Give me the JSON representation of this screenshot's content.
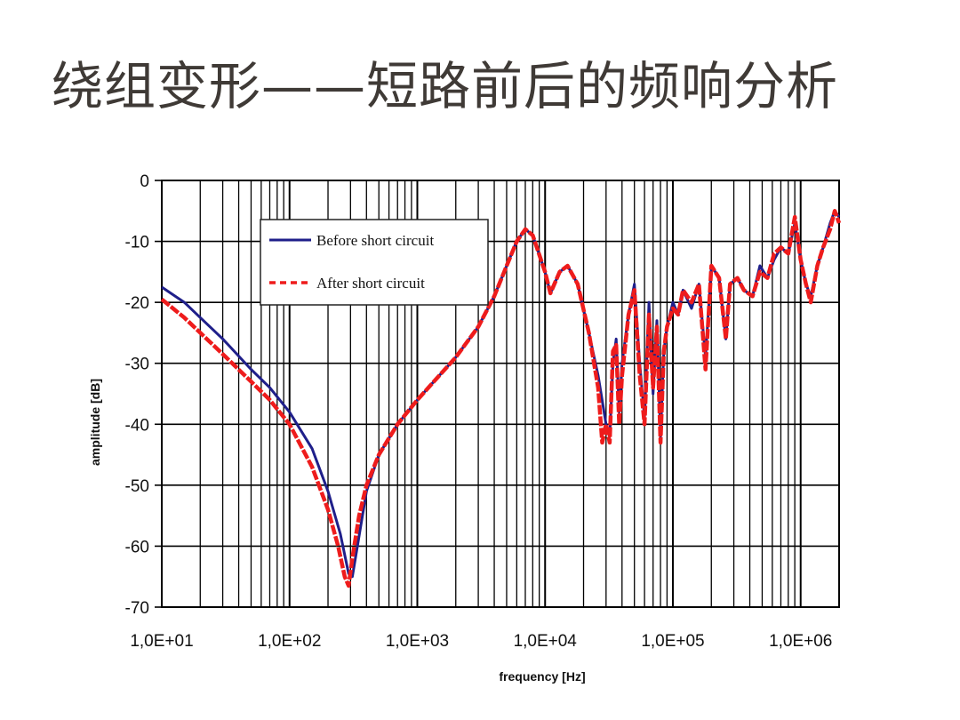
{
  "slide": {
    "title": "绕组变形——短路前后的频响分析"
  },
  "chart_data": {
    "type": "line",
    "title": "",
    "xlabel": "frequency [Hz]",
    "ylabel": "amplitude [dB]",
    "xscale": "log",
    "xlim": [
      10,
      2000000
    ],
    "ylim": [
      -70,
      0
    ],
    "grid": true,
    "legend_position": "top-left",
    "x_tick_labels": [
      "1,0E+01",
      "1,0E+02",
      "1,0E+03",
      "1,0E+04",
      "1,0E+05",
      "1,0E+06"
    ],
    "x_tick_values": [
      10,
      100,
      1000,
      10000,
      100000,
      1000000
    ],
    "y_ticks": [
      0,
      -10,
      -20,
      -30,
      -40,
      -50,
      -60,
      -70
    ],
    "series": [
      {
        "name": "Before short circuit",
        "color": "#1f1f8a",
        "style": "solid",
        "points": [
          [
            10,
            -17.5
          ],
          [
            15,
            -20
          ],
          [
            20,
            -22.5
          ],
          [
            30,
            -26
          ],
          [
            50,
            -31
          ],
          [
            70,
            -34
          ],
          [
            100,
            -38
          ],
          [
            150,
            -44
          ],
          [
            200,
            -51
          ],
          [
            250,
            -58
          ],
          [
            290,
            -64.5
          ],
          [
            310,
            -65
          ],
          [
            340,
            -60
          ],
          [
            400,
            -51
          ],
          [
            500,
            -45
          ],
          [
            700,
            -40
          ],
          [
            1000,
            -36
          ],
          [
            2000,
            -29
          ],
          [
            3000,
            -24
          ],
          [
            4000,
            -19
          ],
          [
            5000,
            -14
          ],
          [
            6000,
            -10
          ],
          [
            7000,
            -8
          ],
          [
            8000,
            -9
          ],
          [
            10000,
            -15
          ],
          [
            11000,
            -18.5
          ],
          [
            13000,
            -15
          ],
          [
            15000,
            -14
          ],
          [
            18000,
            -17
          ],
          [
            22000,
            -25
          ],
          [
            26000,
            -32
          ],
          [
            30000,
            -40
          ],
          [
            32000,
            -42
          ],
          [
            34000,
            -30
          ],
          [
            36000,
            -26
          ],
          [
            38000,
            -38
          ],
          [
            40000,
            -30
          ],
          [
            45000,
            -22
          ],
          [
            50000,
            -17
          ],
          [
            55000,
            -30
          ],
          [
            60000,
            -39
          ],
          [
            65000,
            -20
          ],
          [
            70000,
            -35
          ],
          [
            75000,
            -23
          ],
          [
            80000,
            -42
          ],
          [
            85000,
            -28
          ],
          [
            90000,
            -24
          ],
          [
            100000,
            -20
          ],
          [
            110000,
            -22
          ],
          [
            120000,
            -18
          ],
          [
            140000,
            -21
          ],
          [
            160000,
            -17
          ],
          [
            180000,
            -29
          ],
          [
            200000,
            -14
          ],
          [
            230000,
            -16
          ],
          [
            260000,
            -26
          ],
          [
            280000,
            -17
          ],
          [
            320000,
            -16
          ],
          [
            360000,
            -18
          ],
          [
            420000,
            -19
          ],
          [
            480000,
            -14
          ],
          [
            550000,
            -16
          ],
          [
            620000,
            -13
          ],
          [
            700000,
            -11
          ],
          [
            800000,
            -12
          ],
          [
            900000,
            -7
          ],
          [
            1000000,
            -13
          ],
          [
            1100000,
            -17
          ],
          [
            1200000,
            -19
          ],
          [
            1350000,
            -14
          ],
          [
            1500000,
            -11
          ],
          [
            1700000,
            -7
          ],
          [
            1850000,
            -5
          ],
          [
            2000000,
            -6
          ]
        ]
      },
      {
        "name": "After short circuit",
        "color": "#ee1c1c",
        "style": "dashed",
        "points": [
          [
            10,
            -19.5
          ],
          [
            15,
            -22.5
          ],
          [
            20,
            -25
          ],
          [
            30,
            -28.5
          ],
          [
            50,
            -33
          ],
          [
            70,
            -36
          ],
          [
            100,
            -40
          ],
          [
            150,
            -47
          ],
          [
            200,
            -54
          ],
          [
            240,
            -60
          ],
          [
            270,
            -65
          ],
          [
            290,
            -66.5
          ],
          [
            310,
            -62
          ],
          [
            350,
            -55
          ],
          [
            400,
            -50
          ],
          [
            500,
            -45
          ],
          [
            700,
            -40
          ],
          [
            1000,
            -36
          ],
          [
            2000,
            -29
          ],
          [
            3000,
            -24
          ],
          [
            4000,
            -19
          ],
          [
            5000,
            -14
          ],
          [
            6000,
            -10
          ],
          [
            7000,
            -8
          ],
          [
            8000,
            -9
          ],
          [
            10000,
            -15
          ],
          [
            11000,
            -18.5
          ],
          [
            13000,
            -15
          ],
          [
            15000,
            -14
          ],
          [
            18000,
            -17
          ],
          [
            22000,
            -25
          ],
          [
            26000,
            -34
          ],
          [
            28000,
            -43
          ],
          [
            30000,
            -40
          ],
          [
            32000,
            -43
          ],
          [
            34000,
            -28
          ],
          [
            36000,
            -27
          ],
          [
            38000,
            -40
          ],
          [
            40000,
            -32
          ],
          [
            45000,
            -22
          ],
          [
            50000,
            -18
          ],
          [
            55000,
            -32
          ],
          [
            60000,
            -40
          ],
          [
            65000,
            -22
          ],
          [
            70000,
            -34
          ],
          [
            75000,
            -24
          ],
          [
            80000,
            -43
          ],
          [
            85000,
            -28
          ],
          [
            90000,
            -24
          ],
          [
            100000,
            -21
          ],
          [
            110000,
            -22
          ],
          [
            120000,
            -18
          ],
          [
            140000,
            -20
          ],
          [
            160000,
            -17
          ],
          [
            180000,
            -31
          ],
          [
            200000,
            -14
          ],
          [
            230000,
            -16
          ],
          [
            260000,
            -26
          ],
          [
            280000,
            -17
          ],
          [
            320000,
            -16
          ],
          [
            360000,
            -18
          ],
          [
            420000,
            -19
          ],
          [
            480000,
            -15
          ],
          [
            550000,
            -16
          ],
          [
            620000,
            -12
          ],
          [
            700000,
            -11
          ],
          [
            800000,
            -12
          ],
          [
            900000,
            -6
          ],
          [
            1000000,
            -13
          ],
          [
            1100000,
            -17
          ],
          [
            1200000,
            -20
          ],
          [
            1350000,
            -14
          ],
          [
            1500000,
            -11
          ],
          [
            1700000,
            -8
          ],
          [
            1850000,
            -5
          ],
          [
            2000000,
            -7
          ]
        ]
      }
    ]
  }
}
